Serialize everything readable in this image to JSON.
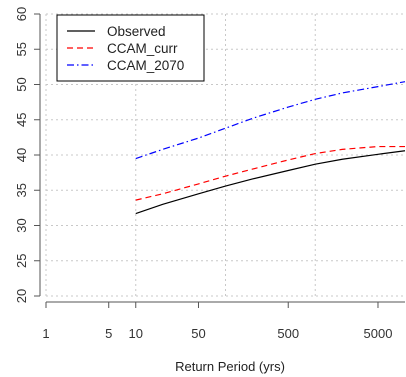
{
  "chart_data": {
    "type": "line",
    "xlabel": "Return Period (yrs)",
    "ylabel": "",
    "x_scale": "log",
    "xlim": [
      1,
      10000
    ],
    "ylim": [
      20,
      60
    ],
    "x_ticks": [
      1,
      5,
      10,
      50,
      500,
      5000
    ],
    "x_tick_labels": [
      "1",
      "5",
      "10",
      "50",
      "500",
      "5000"
    ],
    "x_gridlines": [
      1,
      10,
      100,
      1000
    ],
    "y_ticks": [
      20,
      25,
      30,
      35,
      40,
      45,
      50,
      55,
      60
    ],
    "y_tick_labels": [
      "20",
      "25",
      "30",
      "35",
      "40",
      "45",
      "50",
      "55",
      "60"
    ],
    "grid": true,
    "legend_position": "top-left",
    "series": [
      {
        "name": "Observed",
        "color": "#000000",
        "dash": "solid",
        "x": [
          10,
          20,
          50,
          100,
          200,
          500,
          1000,
          2000,
          5000,
          10000
        ],
        "y": [
          31.7,
          33.0,
          34.5,
          35.6,
          36.6,
          37.8,
          38.7,
          39.4,
          40.1,
          40.6
        ]
      },
      {
        "name": "CCAM_curr",
        "color": "#ff0000",
        "dash": "dashed",
        "x": [
          10,
          20,
          50,
          100,
          200,
          500,
          1000,
          2000,
          5000,
          10000
        ],
        "y": [
          33.6,
          34.5,
          35.9,
          37.0,
          38.0,
          39.3,
          40.2,
          40.8,
          41.2,
          41.2
        ]
      },
      {
        "name": "CCAM_2070",
        "color": "#0000ff",
        "dash": "dotdash",
        "x": [
          10,
          20,
          50,
          100,
          200,
          500,
          1000,
          2000,
          5000,
          10000
        ],
        "y": [
          39.5,
          40.8,
          42.4,
          43.8,
          45.2,
          46.8,
          47.9,
          48.8,
          49.7,
          50.4
        ]
      }
    ]
  }
}
